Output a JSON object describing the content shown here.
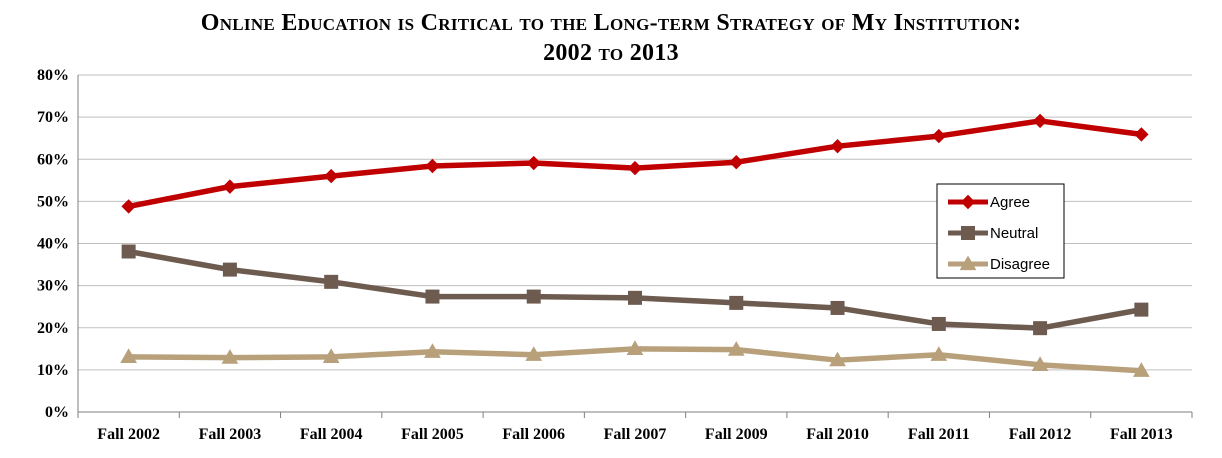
{
  "chart_data": {
    "type": "line",
    "title_line1": "Online Education is Critical to the Long-term Strategy of My Institution:",
    "title_line2": "2002 to 2013",
    "xlabel": "",
    "ylabel": "",
    "categories": [
      "Fall 2002",
      "Fall 2003",
      "Fall 2004",
      "Fall 2005",
      "Fall 2006",
      "Fall 2007",
      "Fall 2009",
      "Fall 2010",
      "Fall 2011",
      "Fall 2012",
      "Fall 2013"
    ],
    "yticks": [
      "0%",
      "10%",
      "20%",
      "30%",
      "40%",
      "50%",
      "60%",
      "70%",
      "80%"
    ],
    "ylim": [
      0,
      80
    ],
    "grid": true,
    "legend_position": "right",
    "series": [
      {
        "name": "Agree",
        "color": "#C00000",
        "marker": "diamond",
        "values": [
          48.8,
          53.5,
          56.0,
          58.4,
          59.1,
          57.9,
          59.3,
          63.1,
          65.5,
          69.1,
          65.9
        ]
      },
      {
        "name": "Neutral",
        "color": "#6E5B50",
        "marker": "square",
        "values": [
          38.1,
          33.8,
          30.9,
          27.4,
          27.4,
          27.1,
          25.9,
          24.7,
          20.9,
          19.9,
          24.3
        ]
      },
      {
        "name": "Disagree",
        "color": "#B7A07A",
        "marker": "triangle",
        "values": [
          13.1,
          12.9,
          13.1,
          14.3,
          13.6,
          15.0,
          14.8,
          12.3,
          13.6,
          11.2,
          9.8
        ]
      }
    ]
  }
}
